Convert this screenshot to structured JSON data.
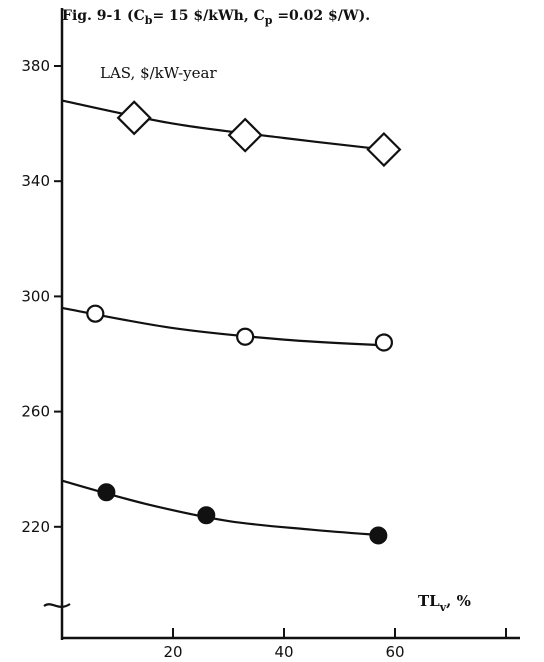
{
  "chart_data": {
    "type": "scatter",
    "title_parts": {
      "prefix": "Fig. 9-1 (C",
      "sub_b": "b",
      "mid": "= 15 $/kWh, C",
      "sub_p": "p",
      "suffix": " =0.02 $/W)."
    },
    "ylabel": "LAS, $/kW-year",
    "xlabel_parts": {
      "main": "TL",
      "sub": "v",
      "suffix": ", %"
    },
    "x_ticks": [
      20,
      40,
      60
    ],
    "y_ticks": [
      220,
      260,
      300,
      340,
      380
    ],
    "xlim": [
      0,
      80
    ],
    "ylim": [
      180,
      400
    ],
    "grid": false,
    "series": [
      {
        "marker": "diamond",
        "points": [
          [
            13,
            362
          ],
          [
            33,
            356
          ],
          [
            58,
            351
          ]
        ],
        "curve": [
          [
            0,
            368
          ],
          [
            20,
            360
          ],
          [
            40,
            355
          ],
          [
            58,
            351
          ]
        ]
      },
      {
        "marker": "open-circle",
        "points": [
          [
            6,
            294
          ],
          [
            33,
            286
          ],
          [
            58,
            284
          ]
        ],
        "curve": [
          [
            0,
            296
          ],
          [
            20,
            289
          ],
          [
            40,
            285
          ],
          [
            58,
            283
          ]
        ]
      },
      {
        "marker": "filled-circle",
        "points": [
          [
            8,
            232
          ],
          [
            26,
            224
          ],
          [
            57,
            217
          ]
        ],
        "curve": [
          [
            0,
            236
          ],
          [
            15,
            228
          ],
          [
            30,
            222
          ],
          [
            45,
            219
          ],
          [
            58,
            217
          ]
        ]
      }
    ]
  }
}
